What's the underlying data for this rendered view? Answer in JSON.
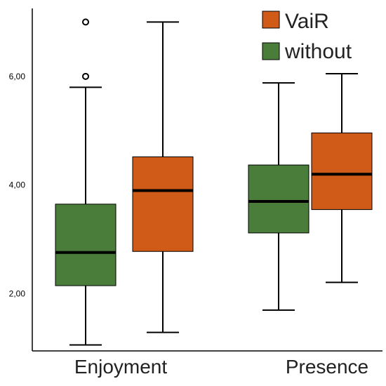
{
  "chart_data": {
    "type": "box",
    "categories": [
      "Enjoyment",
      "Presence"
    ],
    "series": [
      {
        "name": "without",
        "color": "#4a7c3a",
        "boxes": [
          {
            "category": "Enjoyment",
            "whisker_low": 1.06,
            "q1": 2.15,
            "median": 2.76,
            "q3": 3.65,
            "whisker_high": 5.8,
            "outliers": [
              6.0,
              7.0
            ]
          },
          {
            "category": "Presence",
            "whisker_low": 1.7,
            "q1": 3.12,
            "median": 3.7,
            "q3": 4.37,
            "whisker_high": 5.88,
            "outliers": []
          }
        ]
      },
      {
        "name": "VaiR",
        "color": "#d05a17",
        "boxes": [
          {
            "category": "Enjoyment",
            "whisker_low": 1.29,
            "q1": 2.78,
            "median": 3.9,
            "q3": 4.52,
            "whisker_high": 7.0,
            "outliers": []
          },
          {
            "category": "Presence",
            "whisker_low": 2.21,
            "q1": 3.55,
            "median": 4.2,
            "q3": 4.96,
            "whisker_high": 6.05,
            "outliers": []
          }
        ]
      }
    ],
    "y_ticks": [
      "2,00",
      "4,00",
      "6,00"
    ],
    "y_tick_values": [
      2,
      4,
      6
    ],
    "ylim": [
      0.95,
      7.25
    ],
    "legend_position": "top-right",
    "legend_order": [
      "VaiR",
      "without"
    ],
    "grid": false
  }
}
